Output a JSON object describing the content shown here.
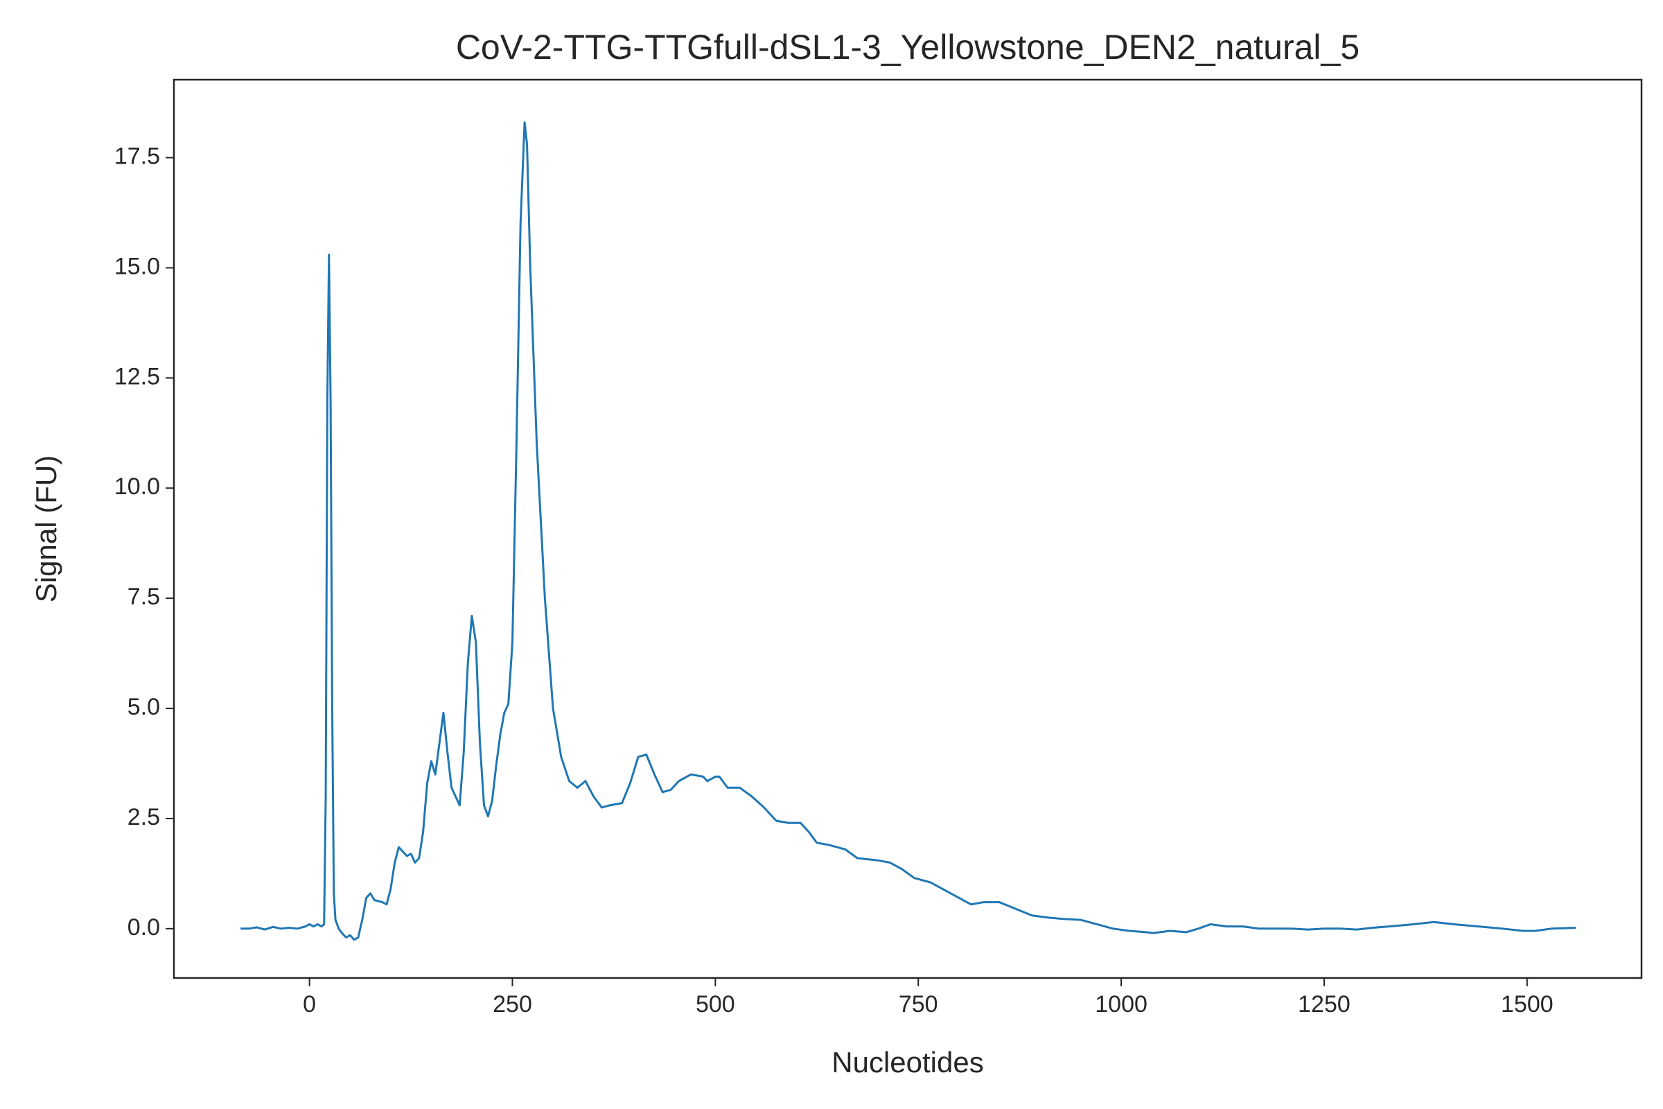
{
  "chart_data": {
    "type": "line",
    "title": "CoV-2-TTG-TTGfull-dSL1-3_Yellowstone_DEN2_natural_5",
    "x_label": "Nucleotides",
    "y_label": "Signal (FU)",
    "color": "#1f77b4",
    "grid": false,
    "xlim": [
      -167,
      1641
    ],
    "ylim": [
      -1.12,
      19.27
    ],
    "xticks": [
      0,
      250,
      500,
      750,
      1000,
      1250,
      1500
    ],
    "yticks": [
      {
        "value": 0,
        "label": "0.0"
      },
      2.5,
      {
        "value": 5,
        "label": "5.0"
      },
      7.5,
      {
        "value": 10,
        "label": "10.0"
      },
      12.5,
      {
        "value": 15,
        "label": "15.0"
      },
      17.5
    ],
    "x": [
      -85,
      -75,
      -65,
      -55,
      -45,
      -35,
      -25,
      -15,
      -5,
      0,
      5,
      10,
      15,
      18,
      20,
      22,
      24,
      26,
      28,
      30,
      32,
      36,
      40,
      45,
      50,
      55,
      60,
      65,
      70,
      75,
      80,
      90,
      95,
      100,
      105,
      110,
      115,
      120,
      125,
      130,
      135,
      140,
      145,
      150,
      155,
      160,
      165,
      170,
      175,
      180,
      185,
      190,
      195,
      200,
      205,
      210,
      215,
      220,
      225,
      230,
      235,
      240,
      245,
      250,
      255,
      260,
      265,
      268,
      272,
      280,
      290,
      300,
      310,
      320,
      330,
      340,
      350,
      360,
      370,
      385,
      395,
      405,
      415,
      425,
      435,
      445,
      455,
      470,
      485,
      490,
      500,
      505,
      515,
      530,
      545,
      560,
      575,
      590,
      605,
      615,
      625,
      640,
      660,
      675,
      700,
      715,
      730,
      745,
      765,
      780,
      800,
      815,
      830,
      850,
      870,
      890,
      910,
      930,
      950,
      970,
      990,
      1010,
      1030,
      1040,
      1060,
      1080,
      1095,
      1110,
      1130,
      1150,
      1170,
      1190,
      1210,
      1230,
      1250,
      1270,
      1290,
      1310,
      1330,
      1360,
      1385,
      1410,
      1440,
      1470,
      1495,
      1510,
      1530,
      1560
    ],
    "y": [
      0.0,
      0.0,
      0.03,
      -0.02,
      0.04,
      0.0,
      0.02,
      0.0,
      0.05,
      0.1,
      0.05,
      0.1,
      0.05,
      0.1,
      3,
      12,
      15.3,
      12,
      5,
      0.8,
      0.2,
      0.0,
      -0.1,
      -0.2,
      -0.15,
      -0.25,
      -0.2,
      0.2,
      0.7,
      0.8,
      0.65,
      0.6,
      0.55,
      0.9,
      1.5,
      1.85,
      1.75,
      1.65,
      1.7,
      1.5,
      1.6,
      2.2,
      3.3,
      3.8,
      3.5,
      4.2,
      4.9,
      4.0,
      3.2,
      3.0,
      2.8,
      4.0,
      6.0,
      7.1,
      6.5,
      4.2,
      2.8,
      2.55,
      2.9,
      3.7,
      4.4,
      4.9,
      5.1,
      6.5,
      11,
      16,
      18.3,
      17.8,
      15,
      11,
      7.5,
      5.0,
      3.9,
      3.35,
      3.2,
      3.35,
      3.0,
      2.75,
      2.8,
      2.85,
      3.3,
      3.9,
      3.95,
      3.5,
      3.1,
      3.15,
      3.35,
      3.5,
      3.45,
      3.35,
      3.45,
      3.45,
      3.2,
      3.2,
      3.0,
      2.75,
      2.45,
      2.4,
      2.4,
      2.2,
      1.95,
      1.9,
      1.8,
      1.6,
      1.55,
      1.5,
      1.35,
      1.15,
      1.05,
      0.9,
      0.7,
      0.55,
      0.6,
      0.6,
      0.45,
      0.3,
      0.25,
      0.22,
      0.2,
      0.1,
      0.0,
      -0.05,
      -0.08,
      -0.1,
      -0.05,
      -0.08,
      0.0,
      0.1,
      0.05,
      0.05,
      0.0,
      0.0,
      0.0,
      -0.02,
      0.0,
      0.0,
      -0.02,
      0.02,
      0.05,
      0.1,
      0.15,
      0.1,
      0.05,
      0.0,
      -0.05,
      -0.05,
      0.0,
      0.02
    ]
  }
}
